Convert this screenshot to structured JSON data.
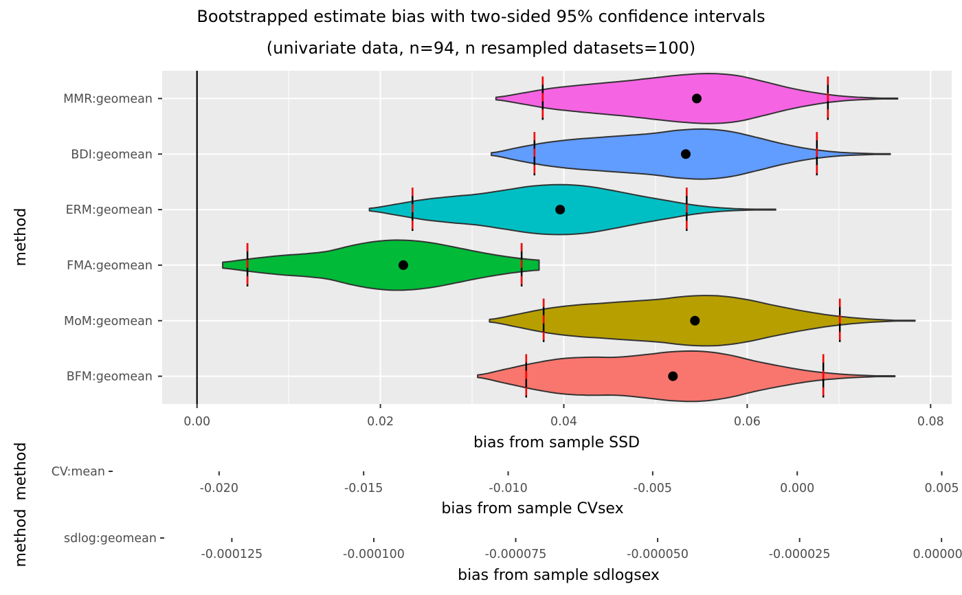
{
  "chart_data": {
    "type": "violin",
    "title": "Bootstrapped estimate bias with two-sided 95% confidence intervals",
    "subtitle": "(univariate data, n=94, n resampled datasets=100)",
    "panels": [
      {
        "id": "ssd",
        "xlabel": "bias from sample SSD",
        "ylabel": "method",
        "xlim": [
          -0.0038,
          0.0823
        ],
        "x_ticks": [
          0.0,
          0.02,
          0.04,
          0.06,
          0.08
        ],
        "x_tick_labels": [
          "0.00",
          "0.02",
          "0.04",
          "0.06",
          "0.08"
        ],
        "x_minor": [
          0.01,
          0.03,
          0.05,
          0.07
        ],
        "reference_line": 0,
        "grid": true,
        "categories": [
          "MMR:geomean",
          "BDI:geomean",
          "ERM:geomean",
          "FMA:geomean",
          "MoM:geomean",
          "BFM:geomean"
        ],
        "series": [
          {
            "name": "MMR:geomean",
            "color": "#F564E3",
            "min": 0.0326,
            "ci_low": 0.0377,
            "estimate": 0.0545,
            "ci_high": 0.0688,
            "max": 0.0764,
            "density": [
              0.05,
              0.22,
              0.4,
              0.52,
              0.62,
              0.72,
              0.84,
              0.95,
              1.0,
              0.92,
              0.68,
              0.42,
              0.22,
              0.09,
              0.03,
              0.0
            ]
          },
          {
            "name": "BDI:geomean",
            "color": "#619CFF",
            "min": 0.0321,
            "ci_low": 0.0368,
            "estimate": 0.0533,
            "ci_high": 0.0676,
            "max": 0.0756,
            "density": [
              0.05,
              0.26,
              0.45,
              0.58,
              0.66,
              0.74,
              0.82,
              0.95,
              1.0,
              0.9,
              0.66,
              0.4,
              0.2,
              0.08,
              0.03,
              0.0
            ]
          },
          {
            "name": "ERM:geomean",
            "color": "#00BFC4",
            "min": 0.0188,
            "ci_low": 0.0235,
            "estimate": 0.0396,
            "ci_high": 0.0534,
            "max": 0.0631,
            "density": [
              0.05,
              0.22,
              0.4,
              0.52,
              0.62,
              0.78,
              0.94,
              1.0,
              0.94,
              0.76,
              0.55,
              0.36,
              0.18,
              0.07,
              0.02,
              0.0
            ]
          },
          {
            "name": "FMA:geomean",
            "color": "#00BA38",
            "min": 0.0028,
            "ci_low": 0.0055,
            "estimate": 0.0225,
            "ci_high": 0.0354,
            "max": 0.0373,
            "density": [
              0.12,
              0.22,
              0.32,
              0.4,
              0.46,
              0.56,
              0.76,
              0.92,
              1.0,
              0.98,
              0.88,
              0.72,
              0.55,
              0.4,
              0.28,
              0.2
            ]
          },
          {
            "name": "MoM:geomean",
            "color": "#B79F00",
            "min": 0.0319,
            "ci_low": 0.0378,
            "estimate": 0.0543,
            "ci_high": 0.0701,
            "max": 0.0783,
            "density": [
              0.05,
              0.26,
              0.48,
              0.62,
              0.7,
              0.78,
              0.86,
              0.98,
              1.0,
              0.86,
              0.62,
              0.4,
              0.22,
              0.1,
              0.03,
              0.0
            ]
          },
          {
            "name": "BFM:geomean",
            "color": "#F8766D",
            "min": 0.0306,
            "ci_low": 0.0359,
            "estimate": 0.0519,
            "ci_high": 0.0683,
            "max": 0.0761,
            "density": [
              0.05,
              0.28,
              0.52,
              0.7,
              0.76,
              0.76,
              0.86,
              0.98,
              1.0,
              0.86,
              0.6,
              0.38,
              0.2,
              0.09,
              0.03,
              0.0
            ]
          }
        ]
      },
      {
        "id": "cvsex",
        "xlabel": "bias from sample CVsex",
        "ylabel": "method",
        "xlim": [
          -0.0238,
          0.0057
        ],
        "x_ticks": [
          -0.02,
          -0.015,
          -0.01,
          -0.005,
          0.0,
          0.005
        ],
        "x_tick_labels": [
          "-0.020",
          "-0.015",
          "-0.010",
          "-0.005",
          "0.000",
          "0.005"
        ],
        "categories": [
          "CV:mean"
        ]
      },
      {
        "id": "sdlogsex",
        "xlabel": "bias from sample sdlogsex",
        "ylabel": "method",
        "xlim": [
          -0.000138,
          3e-06
        ],
        "x_ticks": [
          -0.000125,
          -0.0001,
          -7.5e-05,
          -5e-05,
          -2.5e-05,
          0.0
        ],
        "x_tick_labels": [
          "-0.000125",
          "-0.000100",
          "-0.000075",
          "-0.000050",
          "-0.000025",
          "0.000000"
        ],
        "categories": [
          "sdlog:geomean"
        ]
      }
    ]
  }
}
